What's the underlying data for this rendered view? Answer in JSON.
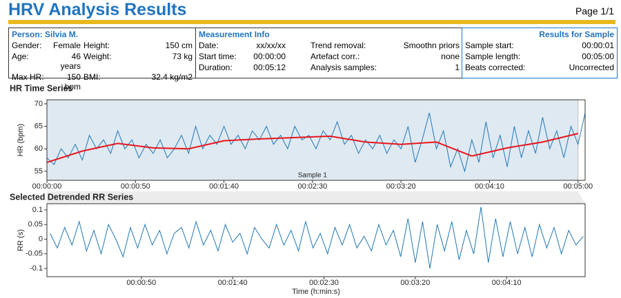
{
  "header": {
    "title": "HRV Analysis Results",
    "page": "Page 1/1"
  },
  "info": {
    "person": {
      "title": "Person: Silvia M.",
      "rows": [
        [
          "Gender:",
          "Female",
          "Height:",
          "150 cm"
        ],
        [
          "Age:",
          "46 years",
          "Weight:",
          "73 kg"
        ],
        [
          "Max HR:",
          "150 bpm",
          "BMI:",
          "32.4 kg/m2"
        ]
      ]
    },
    "measurement": {
      "title": "Measurement Info",
      "rows": [
        [
          "Date:",
          "xx/xx/xx",
          "Trend removal:",
          "Smoothn priors"
        ],
        [
          "Start time:",
          "00:00:00",
          "Artefact corr.:",
          "none"
        ],
        [
          "Duration:",
          "00:05:12",
          "Analysis samples:",
          "1"
        ]
      ]
    },
    "results": {
      "title": "Results for Sample",
      "rows": [
        [
          "Sample start:",
          "00:00:01"
        ],
        [
          "Sample length:",
          "00:05:00"
        ],
        [
          "Beats corrected:",
          "Uncorrected"
        ]
      ]
    }
  },
  "chart_data": [
    {
      "type": "line",
      "title": "HR Time Series",
      "y_label": "HR (bpm)",
      "annotation": "Sample 1",
      "sample_region": [
        0,
        300
      ],
      "region_color": "#dfe9f2",
      "xlim": [
        0,
        304
      ],
      "ylim": [
        53,
        70.9
      ],
      "xticks": [
        {
          "value": 0,
          "label": "00:00:00"
        },
        {
          "value": 50,
          "label": "00:00:50"
        },
        {
          "value": 100,
          "label": "00:01:40"
        },
        {
          "value": 150,
          "label": "00:02:30"
        },
        {
          "value": 200,
          "label": "00:03:20"
        },
        {
          "value": 250,
          "label": "00:04:10"
        },
        {
          "value": 300,
          "label": "00:05:00"
        }
      ],
      "yticks": [
        55,
        60,
        65,
        70
      ],
      "series": [
        {
          "name": "HR",
          "color": "#1f77b4",
          "width": 1,
          "x": [
            0,
            4,
            8,
            12,
            16,
            20,
            24,
            28,
            32,
            36,
            40,
            44,
            48,
            52,
            56,
            60,
            64,
            68,
            72,
            76,
            80,
            84,
            88,
            92,
            96,
            100,
            104,
            108,
            112,
            116,
            120,
            124,
            128,
            132,
            136,
            140,
            144,
            148,
            152,
            156,
            160,
            164,
            168,
            172,
            176,
            180,
            184,
            188,
            192,
            196,
            200,
            204,
            208,
            212,
            216,
            220,
            224,
            228,
            232,
            236,
            240,
            244,
            248,
            252,
            256,
            260,
            264,
            268,
            272,
            276,
            280,
            284,
            288,
            292,
            296,
            300,
            304
          ],
          "values": [
            58,
            56.5,
            60,
            58,
            61,
            57.5,
            63,
            60,
            62,
            59,
            64,
            60,
            62,
            58,
            61,
            59,
            62,
            58,
            60,
            63,
            59,
            65,
            60,
            63,
            61,
            65,
            61,
            63,
            60,
            64,
            62,
            65,
            61,
            63,
            60,
            65,
            62,
            63,
            60,
            64,
            62,
            66,
            61,
            63,
            59,
            62,
            60,
            63,
            59,
            62,
            60,
            65,
            57,
            62,
            68,
            60,
            64,
            56,
            60,
            55,
            62,
            57,
            66,
            58,
            63,
            56,
            65,
            58,
            64,
            59,
            67,
            60,
            64,
            58,
            65,
            61,
            68
          ]
        },
        {
          "name": "Trend",
          "color": "#e8141a",
          "width": 2,
          "x": [
            0,
            20,
            40,
            60,
            80,
            100,
            120,
            140,
            160,
            180,
            200,
            220,
            240,
            260,
            280,
            300
          ],
          "values": [
            57,
            59.5,
            61.2,
            60.2,
            60,
            61.8,
            62.2,
            62.5,
            62.8,
            61.5,
            61,
            61.5,
            58.4,
            60.2,
            61.5,
            63.4
          ]
        }
      ]
    },
    {
      "type": "line",
      "title": "Selected Detrended RR Series",
      "y_label": "RR (s)",
      "x_label": "Time (h:min:s)",
      "xlim": [
        -1.7,
        293
      ],
      "ylim": [
        -0.128,
        0.121
      ],
      "xticks": [
        {
          "value": 50,
          "label": "00:00:50"
        },
        {
          "value": 100,
          "label": "00:01:40"
        },
        {
          "value": 150,
          "label": "00:02:30"
        },
        {
          "value": 200,
          "label": "00:03:20"
        },
        {
          "value": 250,
          "label": "00:04:10"
        }
      ],
      "yticks": [
        0.1,
        0.05,
        0,
        -0.05,
        -0.1
      ],
      "series": [
        {
          "name": "RR",
          "color": "#1f77b4",
          "width": 1,
          "x": [
            0,
            4,
            8,
            12,
            16,
            20,
            24,
            28,
            32,
            36,
            40,
            44,
            48,
            52,
            56,
            60,
            64,
            68,
            72,
            76,
            80,
            84,
            88,
            92,
            96,
            100,
            104,
            108,
            112,
            116,
            120,
            124,
            128,
            132,
            136,
            140,
            144,
            148,
            152,
            156,
            160,
            164,
            168,
            172,
            176,
            180,
            184,
            188,
            192,
            196,
            200,
            204,
            208,
            212,
            216,
            220,
            224,
            228,
            232,
            236,
            240,
            244,
            248,
            252,
            256,
            260,
            264,
            268,
            272,
            276,
            280,
            284,
            288,
            292
          ],
          "values": [
            0.02,
            -0.03,
            0.04,
            -0.02,
            0.06,
            -0.04,
            0.03,
            -0.05,
            0.05,
            0,
            -0.06,
            0.04,
            -0.03,
            0.05,
            -0.02,
            0.03,
            -0.05,
            0.02,
            0.04,
            -0.03,
            0.06,
            -0.02,
            0.03,
            -0.04,
            0.05,
            -0.01,
            0.02,
            -0.05,
            0.04,
            0,
            -0.03,
            0.05,
            -0.02,
            0.03,
            -0.04,
            0.06,
            -0.03,
            0.02,
            -0.05,
            0.04,
            -0.02,
            0.05,
            -0.03,
            0.01,
            -0.04,
            0.05,
            -0.02,
            0.03,
            -0.06,
            0.07,
            -0.08,
            0.06,
            -0.1,
            0.05,
            -0.04,
            0.06,
            -0.07,
            0.03,
            -0.05,
            0.11,
            -0.08,
            0.07,
            -0.06,
            0.06,
            -0.05,
            0.04,
            -0.06,
            0.05,
            -0.03,
            0.04,
            -0.05,
            0.03,
            -0.02,
            0.01
          ]
        }
      ]
    }
  ]
}
